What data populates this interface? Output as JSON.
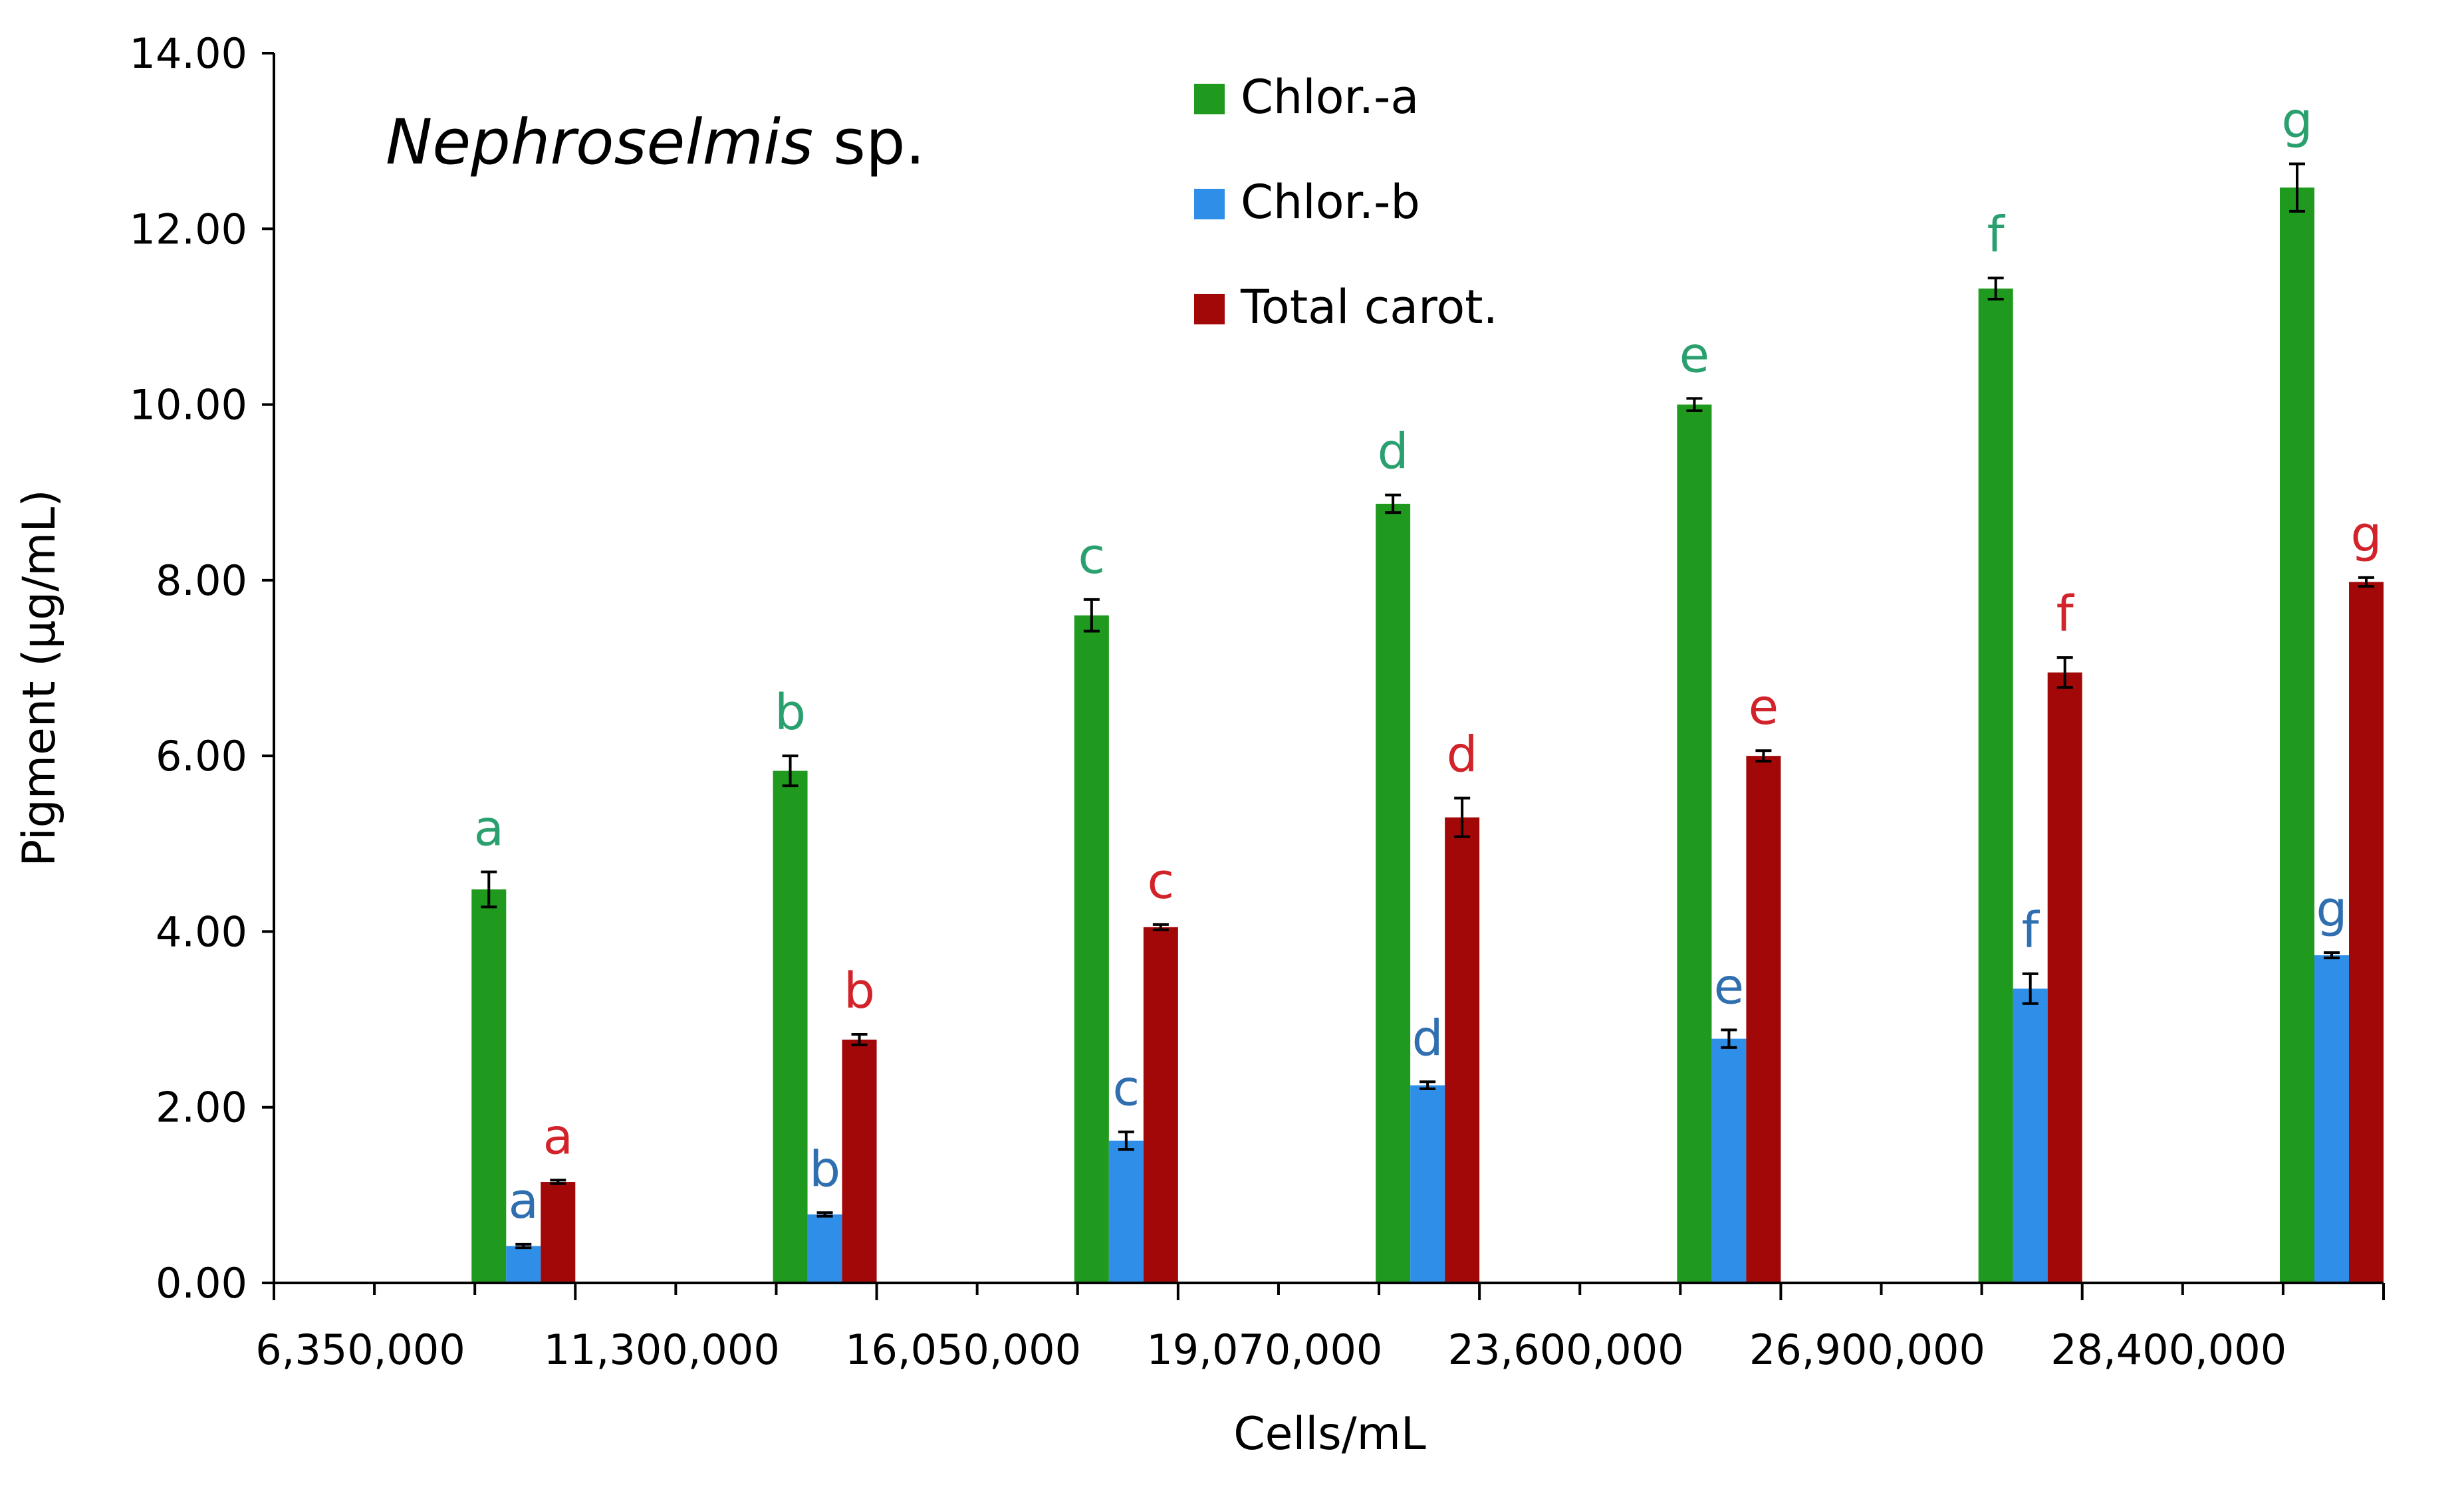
{
  "chart_data": {
    "type": "bar",
    "title": "",
    "annotation": {
      "genus": "Nephroselmis",
      "suffix": " sp."
    },
    "xlabel": "Cells/mL",
    "ylabel": "Pigment (μg/mL)",
    "ylim": [
      0,
      14
    ],
    "y_ticks": [
      "0.00",
      "2.00",
      "4.00",
      "6.00",
      "8.00",
      "10.00",
      "12.00",
      "14.00"
    ],
    "categories": [
      "6,350,000",
      "11,300,000",
      "16,050,000",
      "19,070,000",
      "23,600,000",
      "26,900,000",
      "28,400,000"
    ],
    "legend_position": "top-center",
    "grid": false,
    "series": [
      {
        "name": "Chlor.-a",
        "color": "#1f9a1f",
        "label_color": "#2aa06e",
        "values": [
          4.48,
          5.83,
          7.6,
          8.87,
          10.0,
          11.32,
          12.47
        ],
        "errors": [
          0.2,
          0.17,
          0.18,
          0.1,
          0.07,
          0.12,
          0.27
        ],
        "letters": [
          "a",
          "b",
          "c",
          "d",
          "e",
          "f",
          "g"
        ]
      },
      {
        "name": "Chlor.-b",
        "color": "#2f8ee8",
        "label_color": "#2f6fb0",
        "values": [
          0.42,
          0.78,
          1.62,
          2.25,
          2.78,
          3.35,
          3.73
        ],
        "errors": [
          0.02,
          0.02,
          0.1,
          0.04,
          0.1,
          0.17,
          0.03
        ],
        "letters": [
          "a",
          "b",
          "c",
          "d",
          "e",
          "f",
          "g"
        ]
      },
      {
        "name": "Total carot.",
        "color": "#a30808",
        "label_color": "#d2232a",
        "values": [
          1.15,
          2.77,
          4.05,
          5.3,
          6.0,
          6.95,
          7.98
        ],
        "errors": [
          0.02,
          0.06,
          0.03,
          0.22,
          0.06,
          0.17,
          0.05
        ],
        "letters": [
          "a",
          "b",
          "c",
          "d",
          "e",
          "f",
          "g"
        ]
      }
    ]
  }
}
